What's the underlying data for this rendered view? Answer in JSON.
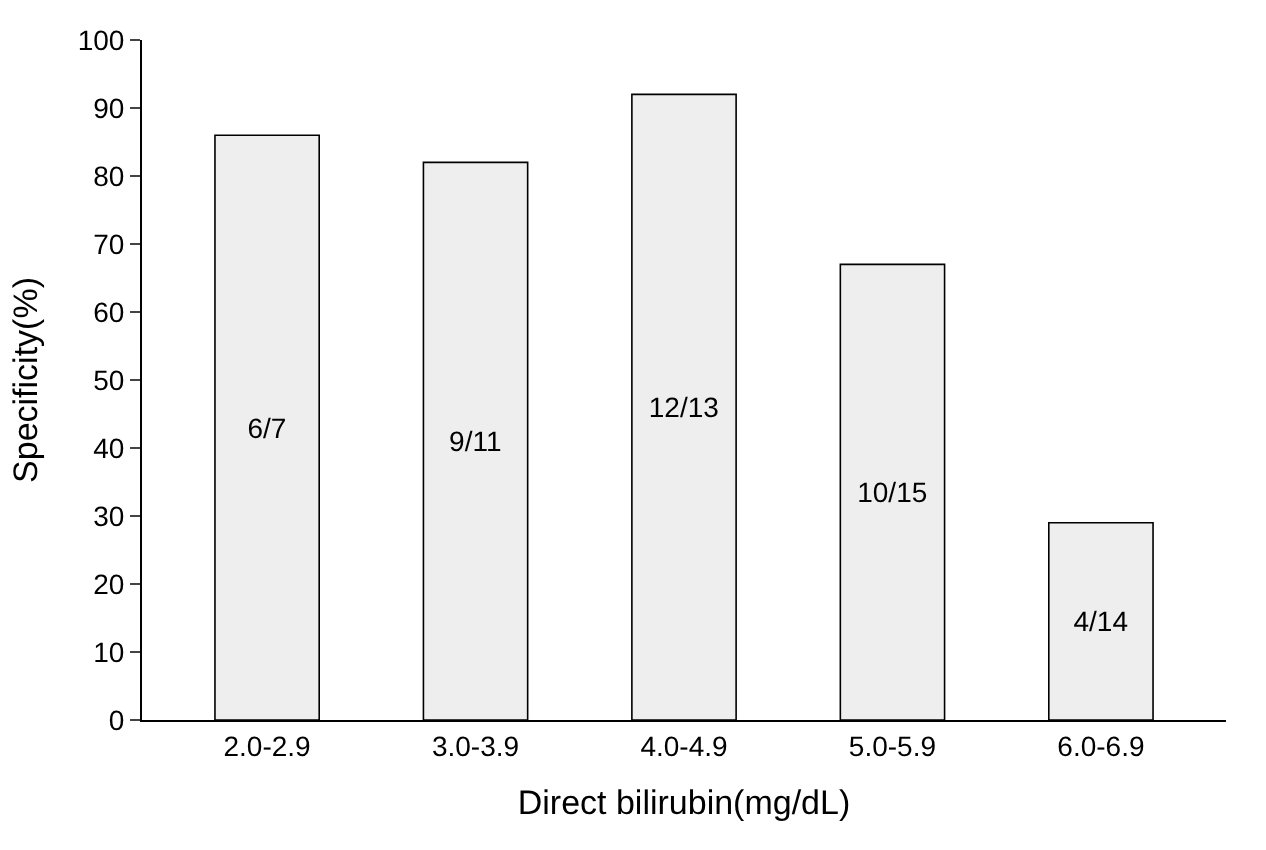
{
  "chart_data": {
    "type": "bar",
    "xlabel": "Direct bilirubin(mg/dL)",
    "ylabel": "Specificity(%)",
    "categories": [
      "2.0-2.9",
      "3.0-3.9",
      "4.0-4.9",
      "5.0-5.9",
      "6.0-6.9"
    ],
    "values": [
      86,
      82,
      92,
      67,
      29
    ],
    "value_labels": [
      "6/7",
      "9/11",
      "12/13",
      "10/15",
      "4/14"
    ],
    "color": "#eeeeee",
    "ylim": [
      0,
      100
    ],
    "yticks": [
      0,
      10,
      20,
      30,
      40,
      50,
      60,
      70,
      80,
      90,
      100
    ]
  }
}
